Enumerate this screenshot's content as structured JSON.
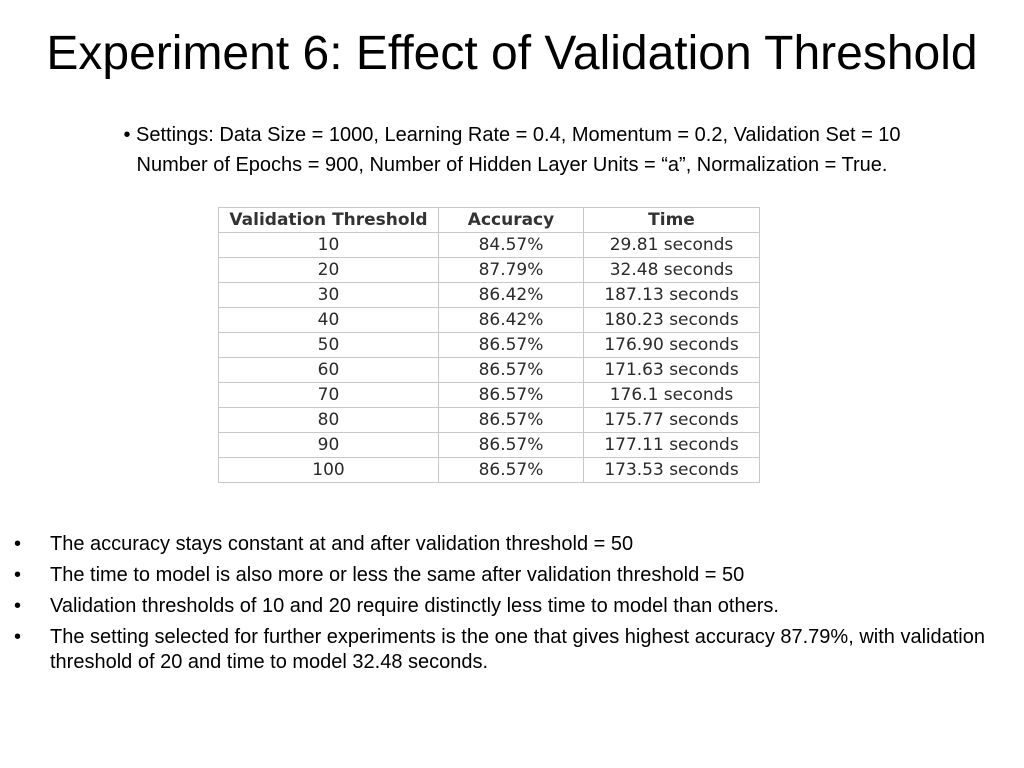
{
  "title": "Experiment 6: Effect of Validation Threshold",
  "settings": {
    "line1": "• Settings: Data Size = 1000, Learning Rate = 0.4, Momentum = 0.2, Validation Set = 10",
    "line2": "Number of Epochs = 900, Number of Hidden Layer Units = “a”, Normalization = True."
  },
  "table": {
    "headers": [
      "Validation Threshold",
      "Accuracy",
      "Time"
    ],
    "rows": [
      [
        "10",
        "84.57%",
        "29.81 seconds"
      ],
      [
        "20",
        "87.79%",
        "32.48 seconds"
      ],
      [
        "30",
        "86.42%",
        "187.13 seconds"
      ],
      [
        "40",
        "86.42%",
        "180.23 seconds"
      ],
      [
        "50",
        "86.57%",
        "176.90 seconds"
      ],
      [
        "60",
        "86.57%",
        "171.63 seconds"
      ],
      [
        "70",
        "86.57%",
        "176.1 seconds"
      ],
      [
        "80",
        "86.57%",
        "175.77 seconds"
      ],
      [
        "90",
        "86.57%",
        "177.11 seconds"
      ],
      [
        "100",
        "86.57%",
        "173.53 seconds"
      ]
    ]
  },
  "bullets": [
    {
      "marker": "•",
      "text": "The accuracy stays constant at and after validation threshold = 50"
    },
    {
      "marker": "•",
      "text": "The time to model is also more or less the same after validation threshold = 50"
    },
    {
      "marker": "•",
      "text": "Validation thresholds of 10 and 20 require distinctly less time to model than others."
    },
    {
      "marker": "•",
      "text": "The setting selected for further experiments is the one that gives highest accuracy 87.79%, with validation threshold of 20 and time to model 32.48 seconds."
    }
  ]
}
